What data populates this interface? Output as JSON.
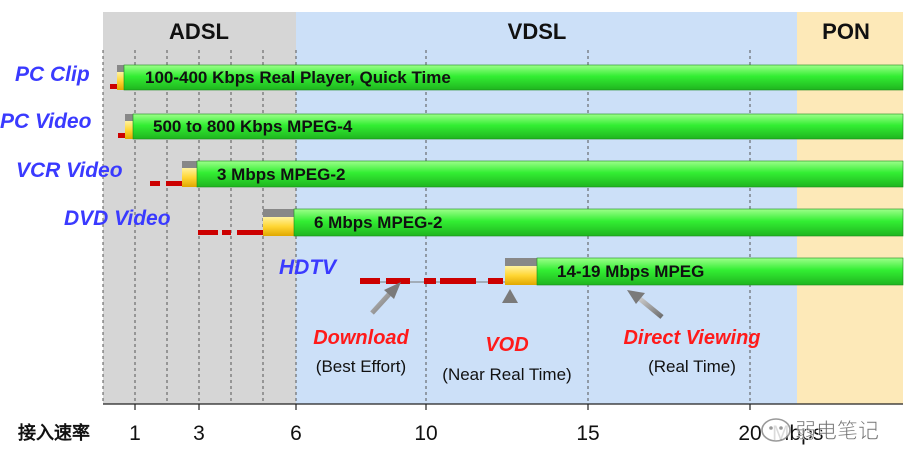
{
  "zones": [
    {
      "label": "ADSL",
      "color": "#d6d6d6"
    },
    {
      "label": "VDSL",
      "color": "#cce0f8"
    },
    {
      "label": "PON",
      "color": "#fde9b8"
    }
  ],
  "rows": [
    {
      "name": "PC Clip",
      "bar_label": "100-400 Kbps  Real Player, Quick Time"
    },
    {
      "name": "PC Video",
      "bar_label": "500 to 800 Kbps  MPEG-4"
    },
    {
      "name": "VCR Video",
      "bar_label": "3 Mbps  MPEG-2"
    },
    {
      "name": "DVD Video",
      "bar_label": "6 Mbps  MPEG-2"
    },
    {
      "name": "HDTV",
      "bar_label": "14-19 Mbps  MPEG"
    }
  ],
  "axis": {
    "title": "接入速率",
    "ticks": [
      "1",
      "3",
      "6",
      "10",
      "15",
      "20"
    ],
    "unit": "Mbps"
  },
  "annotations": [
    {
      "title": "Download",
      "sub": "(Best Effort)"
    },
    {
      "title": "VOD",
      "sub": "(Near Real Time)"
    },
    {
      "title": "Direct Viewing",
      "sub": "(Real Time)"
    }
  ],
  "watermark": "弱电笔记",
  "colors": {
    "row_name": "#3a3aff",
    "annotation_title": "#ff1a1a",
    "bar_green": "#33ee33",
    "bar_yellow": "#ffd633",
    "bar_gray": "#888888",
    "dash_red": "#cc0000"
  }
}
